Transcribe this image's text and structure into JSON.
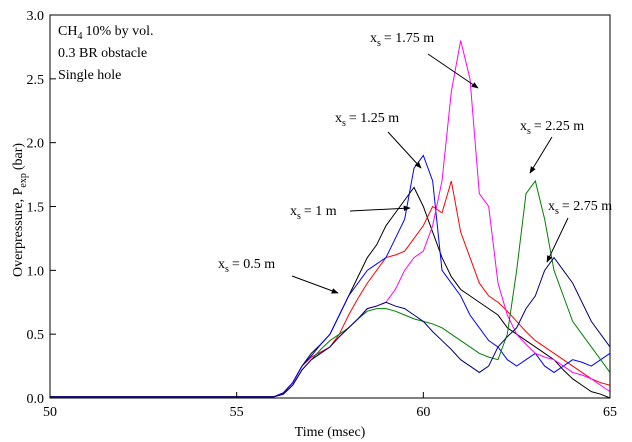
{
  "chart_data": {
    "type": "line",
    "x_label": "Time (msec)",
    "y_label": {
      "main": "Overpressure, P",
      "sub": "exp",
      "rest": "(bar)"
    },
    "info": [
      {
        "main": "CH",
        "sub": "4",
        "rest": "10% by vol."
      },
      {
        "main": "0.3 BR obstacle"
      },
      {
        "main": "Single hole"
      }
    ],
    "annotations": [
      {
        "main": "x",
        "sub": "s",
        "rest": "= 0.5 m"
      },
      {
        "main": "x",
        "sub": "s",
        "rest": "= 1 m"
      },
      {
        "main": "x",
        "sub": "s",
        "rest": "= 1.25 m"
      },
      {
        "main": "x",
        "sub": "s",
        "rest": "= 1.75 m"
      },
      {
        "main": "x",
        "sub": "s",
        "rest": "= 2.25 m"
      },
      {
        "main": "x",
        "sub": "s",
        "rest": "= 2.75 m"
      }
    ],
    "xlim": [
      50,
      65
    ],
    "xticks": [
      50,
      55,
      60,
      65
    ],
    "ylim": [
      0,
      3
    ],
    "yticks": [
      {
        "value": 0,
        "label": "0.0"
      },
      {
        "value": 0.5,
        "label": "0.5"
      },
      {
        "value": 1,
        "label": "1.0"
      },
      {
        "value": 1.5,
        "label": "1.5"
      },
      {
        "value": 2,
        "label": "2.0"
      },
      {
        "value": 2.5,
        "label": "2.5"
      },
      {
        "value": 3,
        "label": "3.0"
      }
    ],
    "x": [
      50,
      50.5,
      51,
      51.5,
      52,
      52.5,
      53,
      53.5,
      54,
      54.5,
      55,
      55.5,
      56,
      56.25,
      56.5,
      56.75,
      57,
      57.25,
      57.5,
      57.75,
      58,
      58.25,
      58.5,
      58.75,
      59,
      59.25,
      59.5,
      59.75,
      60,
      60.25,
      60.5,
      60.75,
      61,
      61.25,
      61.5,
      61.75,
      62,
      62.25,
      62.5,
      62.75,
      63,
      63.25,
      63.5,
      63.75,
      64,
      64.25,
      64.5,
      64.75,
      65
    ],
    "series": [
      {
        "color": "#000000",
        "values": [
          0.01,
          0.01,
          0.01,
          0.01,
          0.01,
          0.01,
          0.01,
          0.01,
          0.01,
          0.01,
          0.01,
          0.01,
          0.01,
          0.04,
          0.12,
          0.25,
          0.35,
          0.42,
          0.5,
          0.65,
          0.8,
          0.95,
          1.1,
          1.2,
          1.35,
          1.45,
          1.55,
          1.65,
          1.5,
          1.3,
          1.1,
          0.95,
          0.85,
          0.8,
          0.75,
          0.7,
          0.65,
          0.55,
          0.5,
          0.45,
          0.4,
          0.35,
          0.3,
          0.22,
          0.15,
          0.1,
          0.05,
          0.03,
          0.0
        ]
      },
      {
        "color": "#ff0000",
        "values": [
          0.01,
          0.01,
          0.01,
          0.01,
          0.01,
          0.01,
          0.01,
          0.01,
          0.01,
          0.01,
          0.01,
          0.01,
          0.01,
          0.04,
          0.12,
          0.25,
          0.32,
          0.36,
          0.4,
          0.5,
          0.65,
          0.78,
          0.9,
          1.0,
          1.1,
          1.12,
          1.15,
          1.25,
          1.35,
          1.5,
          1.45,
          1.7,
          1.3,
          1.1,
          0.9,
          0.8,
          0.75,
          0.68,
          0.6,
          0.52,
          0.45,
          0.4,
          0.35,
          0.3,
          0.25,
          0.2,
          0.15,
          0.12,
          0.1
        ]
      },
      {
        "color": "#0000ff",
        "values": [
          0.01,
          0.01,
          0.01,
          0.01,
          0.01,
          0.01,
          0.01,
          0.01,
          0.01,
          0.01,
          0.01,
          0.01,
          0.01,
          0.04,
          0.12,
          0.25,
          0.33,
          0.42,
          0.5,
          0.65,
          0.8,
          0.9,
          1.0,
          1.05,
          1.1,
          1.25,
          1.4,
          1.8,
          1.9,
          1.7,
          1.0,
          0.9,
          0.8,
          0.65,
          0.55,
          0.45,
          0.4,
          0.3,
          0.25,
          0.3,
          0.35,
          0.25,
          0.2,
          0.25,
          0.3,
          0.28,
          0.25,
          0.3,
          0.35
        ]
      },
      {
        "color": "#ff00ff",
        "values": [
          0.01,
          0.01,
          0.01,
          0.01,
          0.01,
          0.01,
          0.01,
          0.01,
          0.01,
          0.01,
          0.01,
          0.01,
          0.01,
          0.03,
          0.1,
          0.22,
          0.3,
          0.35,
          0.4,
          0.48,
          0.55,
          0.62,
          0.7,
          0.72,
          0.75,
          0.85,
          1.0,
          1.1,
          1.15,
          1.35,
          1.7,
          2.4,
          2.8,
          2.5,
          1.6,
          1.5,
          0.9,
          0.65,
          0.5,
          0.42,
          0.35,
          0.32,
          0.3,
          0.25,
          0.2,
          0.18,
          0.15,
          0.1,
          0.05
        ]
      },
      {
        "color": "#008000",
        "values": [
          0.01,
          0.01,
          0.01,
          0.01,
          0.01,
          0.01,
          0.01,
          0.01,
          0.01,
          0.01,
          0.01,
          0.01,
          0.01,
          0.03,
          0.1,
          0.22,
          0.3,
          0.38,
          0.45,
          0.5,
          0.55,
          0.62,
          0.68,
          0.7,
          0.7,
          0.68,
          0.65,
          0.62,
          0.6,
          0.58,
          0.55,
          0.5,
          0.45,
          0.4,
          0.35,
          0.32,
          0.3,
          0.5,
          1.0,
          1.6,
          1.7,
          1.4,
          1.0,
          0.8,
          0.6,
          0.5,
          0.4,
          0.3,
          0.2
        ]
      },
      {
        "color": "#000080",
        "values": [
          0.01,
          0.01,
          0.01,
          0.01,
          0.01,
          0.01,
          0.01,
          0.01,
          0.01,
          0.01,
          0.01,
          0.01,
          0.01,
          0.03,
          0.1,
          0.22,
          0.3,
          0.35,
          0.4,
          0.48,
          0.55,
          0.62,
          0.7,
          0.72,
          0.75,
          0.72,
          0.7,
          0.65,
          0.6,
          0.52,
          0.45,
          0.38,
          0.3,
          0.25,
          0.2,
          0.25,
          0.4,
          0.48,
          0.55,
          0.7,
          0.8,
          1.0,
          1.1,
          1.0,
          0.9,
          0.75,
          0.6,
          0.5,
          0.4
        ]
      }
    ]
  }
}
